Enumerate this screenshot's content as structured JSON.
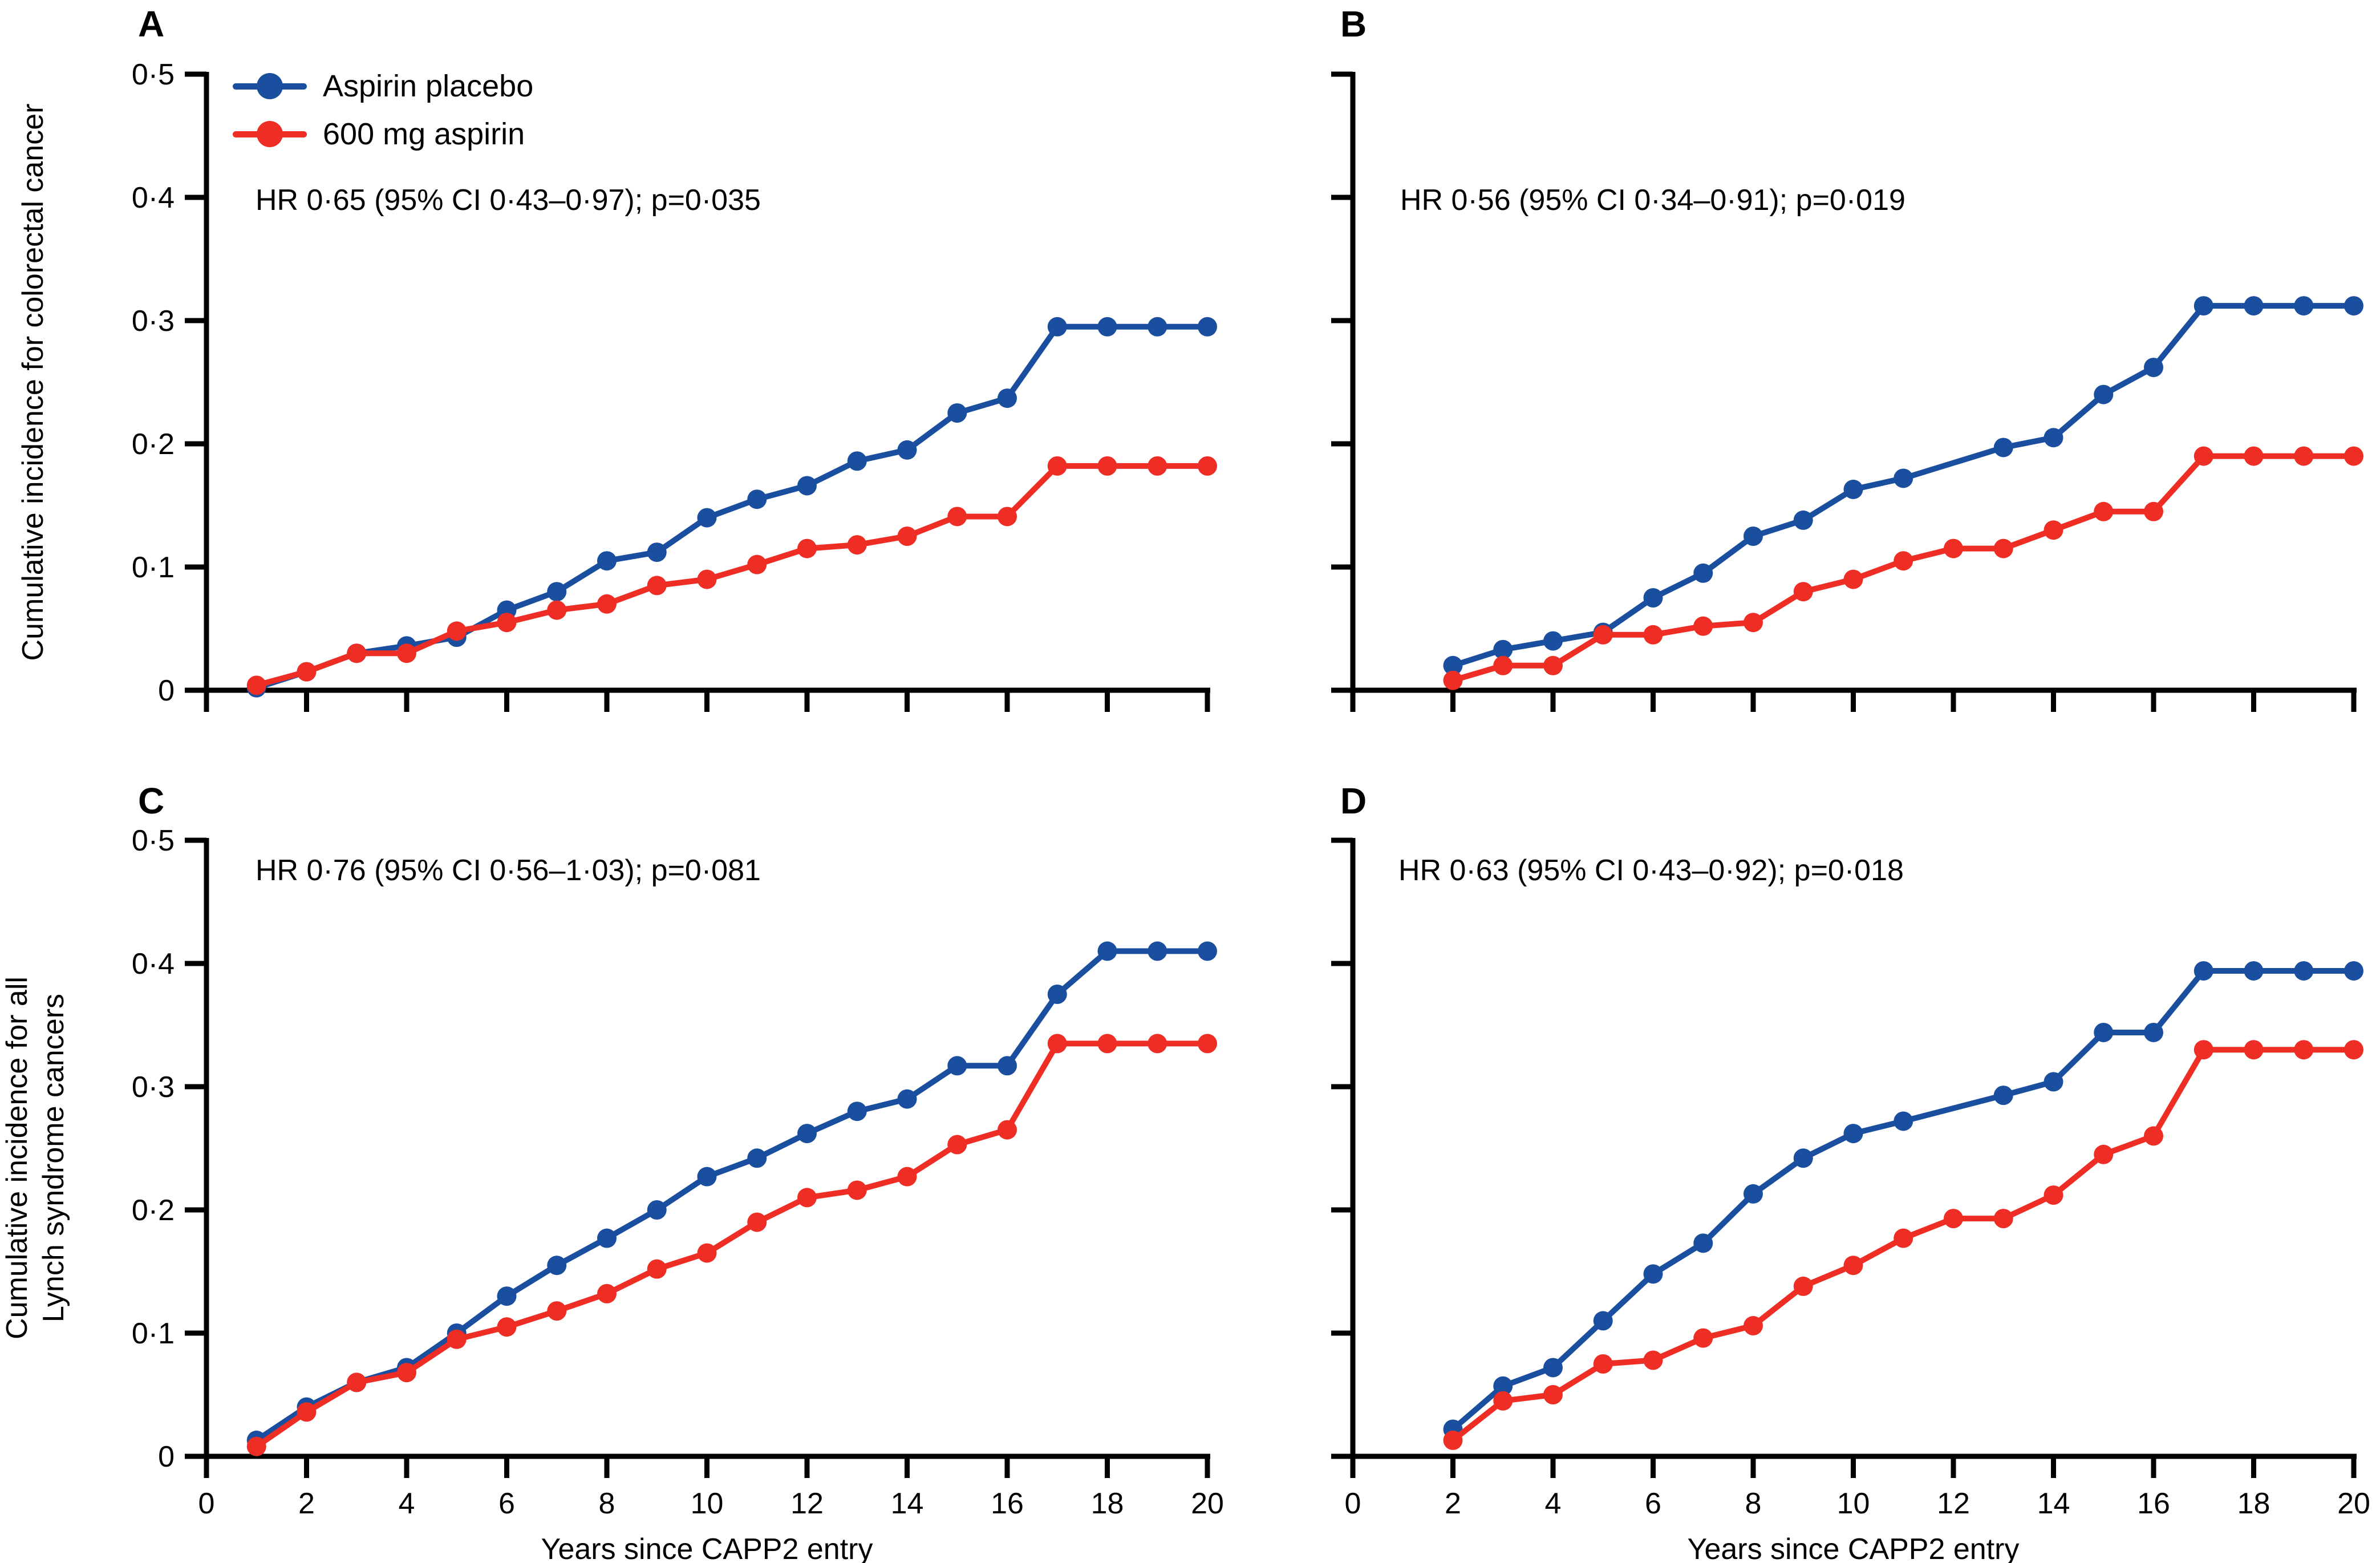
{
  "figure": {
    "colors": {
      "placebo_blue": "#1a4f9f",
      "aspirin_red": "#ee2e24",
      "axis_black": "#000000"
    },
    "legend": {
      "items": [
        {
          "label": "Aspirin placebo",
          "series": "placebo",
          "color": "#1a4f9f"
        },
        {
          "label": "600 mg aspirin",
          "series": "aspirin",
          "color": "#ee2e24"
        }
      ]
    },
    "y_axis_titles": [
      {
        "lines": [
          "Cumulative incidence for colorectal cancer"
        ]
      },
      {
        "lines": [
          "Cumulative incidence for all",
          "Lynch syndrome cancers"
        ]
      }
    ],
    "x_axis_title": "Years since CAPP2 entry"
  },
  "chart_data": [
    {
      "id": "A",
      "type": "line",
      "title": "HR 0·65 (95% CI 0·43–0·97); p=0·035",
      "xlabel": "",
      "ylabel": "Cumulative incidence for colorectal cancer",
      "xlim": [
        0,
        20
      ],
      "ylim": [
        0,
        0.5
      ],
      "xticks": [
        0,
        2,
        4,
        6,
        8,
        10,
        12,
        14,
        16,
        18,
        20
      ],
      "yticks": [
        0,
        0.1,
        0.2,
        0.3,
        0.4,
        0.5
      ],
      "ytick_labels": [
        "0",
        "0·1",
        "0·2",
        "0·3",
        "0·4",
        "0·5"
      ],
      "grid": false,
      "legend_position": "top-left",
      "series": [
        {
          "name": "Aspirin placebo",
          "color": "#1a4f9f",
          "x": [
            1,
            2,
            3,
            4,
            5,
            6,
            7,
            8,
            9,
            10,
            11,
            12,
            13,
            14,
            15,
            16,
            17,
            18,
            19,
            20
          ],
          "y": [
            0.002,
            0.015,
            0.03,
            0.036,
            0.043,
            0.065,
            0.08,
            0.105,
            0.112,
            0.14,
            0.155,
            0.166,
            0.186,
            0.195,
            0.225,
            0.237,
            0.295,
            0.295,
            0.295,
            0.295
          ]
        },
        {
          "name": "600 mg aspirin",
          "color": "#ee2e24",
          "x": [
            1,
            2,
            3,
            4,
            5,
            6,
            7,
            8,
            9,
            10,
            11,
            12,
            13,
            14,
            15,
            16,
            17,
            18,
            19,
            20
          ],
          "y": [
            0.004,
            0.015,
            0.03,
            0.03,
            0.048,
            0.055,
            0.065,
            0.07,
            0.085,
            0.09,
            0.102,
            0.115,
            0.118,
            0.125,
            0.141,
            0.141,
            0.182,
            0.182,
            0.182,
            0.182
          ]
        }
      ]
    },
    {
      "id": "B",
      "type": "line",
      "title": "HR 0·56 (95% CI 0·34–0·91); p=0·019",
      "xlabel": "",
      "ylabel": "",
      "xlim": [
        0,
        20
      ],
      "ylim": [
        0,
        0.5
      ],
      "xticks": [
        0,
        2,
        4,
        6,
        8,
        10,
        12,
        14,
        16,
        18,
        20
      ],
      "yticks": [
        0,
        0.1,
        0.2,
        0.3,
        0.4,
        0.5
      ],
      "ytick_labels": [
        "0",
        "0·1",
        "0·2",
        "0·3",
        "0·4",
        "0·5"
      ],
      "grid": false,
      "legend_position": "none",
      "series": [
        {
          "name": "Aspirin placebo",
          "color": "#1a4f9f",
          "x": [
            2,
            3,
            4,
            5,
            6,
            7,
            8,
            9,
            10,
            11,
            13,
            14,
            15,
            16,
            17,
            18,
            19,
            20
          ],
          "y": [
            0.02,
            0.033,
            0.04,
            0.047,
            0.075,
            0.095,
            0.125,
            0.138,
            0.163,
            0.172,
            0.197,
            0.205,
            0.24,
            0.262,
            0.312,
            0.312,
            0.312,
            0.312
          ]
        },
        {
          "name": "600 mg aspirin",
          "color": "#ee2e24",
          "x": [
            2,
            3,
            4,
            5,
            6,
            7,
            8,
            9,
            10,
            11,
            12,
            13,
            14,
            15,
            16,
            17,
            18,
            19,
            20
          ],
          "y": [
            0.008,
            0.02,
            0.02,
            0.045,
            0.045,
            0.052,
            0.055,
            0.08,
            0.09,
            0.105,
            0.115,
            0.115,
            0.13,
            0.145,
            0.145,
            0.19,
            0.19,
            0.19,
            0.19
          ]
        }
      ]
    },
    {
      "id": "C",
      "type": "line",
      "title": "HR 0·76 (95% CI 0·56–1·03); p=0·081",
      "xlabel": "Years since CAPP2 entry",
      "ylabel": "Cumulative incidence for all Lynch syndrome cancers",
      "xlim": [
        0,
        20
      ],
      "ylim": [
        0,
        0.5
      ],
      "xticks": [
        0,
        2,
        4,
        6,
        8,
        10,
        12,
        14,
        16,
        18,
        20
      ],
      "yticks": [
        0,
        0.1,
        0.2,
        0.3,
        0.4,
        0.5
      ],
      "ytick_labels": [
        "0",
        "0·1",
        "0·2",
        "0·3",
        "0·4",
        "0·5"
      ],
      "grid": false,
      "legend_position": "none",
      "series": [
        {
          "name": "Aspirin placebo",
          "color": "#1a4f9f",
          "x": [
            1,
            2,
            3,
            4,
            5,
            6,
            7,
            8,
            9,
            10,
            11,
            12,
            13,
            14,
            15,
            16,
            17,
            18,
            19,
            20
          ],
          "y": [
            0.013,
            0.04,
            0.06,
            0.072,
            0.1,
            0.13,
            0.155,
            0.177,
            0.2,
            0.227,
            0.242,
            0.262,
            0.28,
            0.29,
            0.317,
            0.317,
            0.375,
            0.41,
            0.41,
            0.41
          ]
        },
        {
          "name": "600 mg aspirin",
          "color": "#ee2e24",
          "x": [
            1,
            2,
            3,
            4,
            5,
            6,
            7,
            8,
            9,
            10,
            11,
            12,
            13,
            14,
            15,
            16,
            17,
            18,
            19,
            20
          ],
          "y": [
            0.008,
            0.036,
            0.06,
            0.068,
            0.095,
            0.105,
            0.118,
            0.132,
            0.152,
            0.165,
            0.19,
            0.21,
            0.216,
            0.227,
            0.253,
            0.265,
            0.335,
            0.335,
            0.335,
            0.335
          ]
        }
      ]
    },
    {
      "id": "D",
      "type": "line",
      "title": "HR 0·63 (95% CI 0·43–0·92); p=0·018",
      "xlabel": "Years since CAPP2 entry",
      "ylabel": "",
      "xlim": [
        0,
        20
      ],
      "ylim": [
        0,
        0.5
      ],
      "xticks": [
        0,
        2,
        4,
        6,
        8,
        10,
        12,
        14,
        16,
        18,
        20
      ],
      "yticks": [
        0,
        0.1,
        0.2,
        0.3,
        0.4,
        0.5
      ],
      "ytick_labels": [
        "0",
        "0·1",
        "0·2",
        "0·3",
        "0·4",
        "0·5"
      ],
      "grid": false,
      "legend_position": "none",
      "series": [
        {
          "name": "Aspirin placebo",
          "color": "#1a4f9f",
          "x": [
            2,
            3,
            4,
            5,
            6,
            7,
            8,
            9,
            10,
            11,
            13,
            14,
            15,
            16,
            17,
            18,
            19,
            20
          ],
          "y": [
            0.022,
            0.057,
            0.072,
            0.11,
            0.148,
            0.173,
            0.213,
            0.242,
            0.262,
            0.272,
            0.293,
            0.304,
            0.344,
            0.344,
            0.394,
            0.394,
            0.394,
            0.394
          ]
        },
        {
          "name": "600 mg aspirin",
          "color": "#ee2e24",
          "x": [
            2,
            3,
            4,
            5,
            6,
            7,
            8,
            9,
            10,
            11,
            12,
            13,
            14,
            15,
            16,
            17,
            18,
            19,
            20
          ],
          "y": [
            0.013,
            0.045,
            0.05,
            0.075,
            0.078,
            0.096,
            0.106,
            0.138,
            0.155,
            0.177,
            0.193,
            0.193,
            0.212,
            0.245,
            0.26,
            0.33,
            0.33,
            0.33,
            0.33
          ]
        }
      ]
    }
  ]
}
